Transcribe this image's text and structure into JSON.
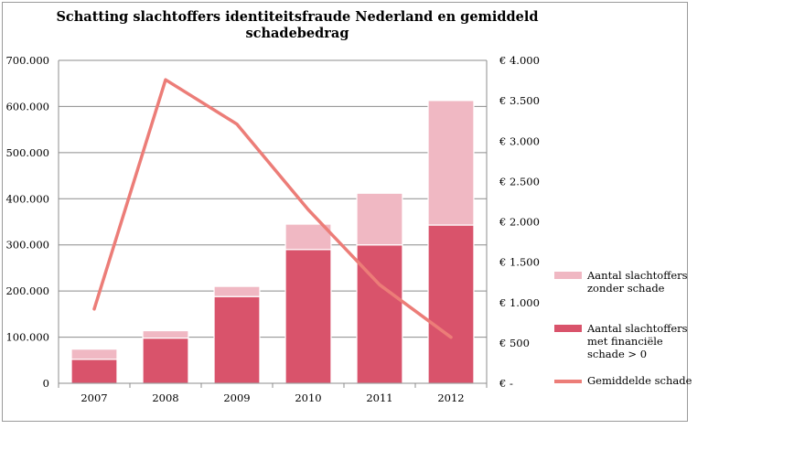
{
  "chart_data": {
    "type": "bar",
    "title": "Schatting slachtoffers identiteitsfraude Nederland en gemiddeld schadebedrag",
    "categories": [
      "2007",
      "2008",
      "2009",
      "2010",
      "2011",
      "2012"
    ],
    "series": [
      {
        "name": "Aantal slachtoffers met financiële schade > 0",
        "type": "bar",
        "axis": "left",
        "values": [
          52000,
          98000,
          188000,
          290000,
          300000,
          343000
        ],
        "color": "#d9536b"
      },
      {
        "name": "Aantal slachtoffers zonder schade",
        "type": "bar",
        "axis": "left",
        "values": [
          22000,
          16000,
          22000,
          55000,
          112000,
          270000
        ],
        "color": "#f0b8c3"
      },
      {
        "name": "Gemiddelde schade",
        "type": "line",
        "axis": "right",
        "values": [
          920,
          3760,
          3210,
          2150,
          1220,
          570
        ],
        "color": "#ec7d78"
      }
    ],
    "stacked": true,
    "ylim": [
      0,
      700000
    ],
    "y2lim": [
      0,
      4000
    ],
    "yticks": [
      "0",
      "100.000",
      "200.000",
      "300.000",
      "400.000",
      "500.000",
      "600.000",
      "700.000"
    ],
    "y2ticks": [
      "€ -",
      "€ 500",
      "€ 1.000",
      "€ 1.500",
      "€ 2.000",
      "€ 2.500",
      "€ 3.000",
      "€ 3.500",
      "€ 4.000"
    ],
    "grid": true,
    "legend_position": "right",
    "legend": [
      {
        "label": "Aantal slachtoffers zonder schade",
        "lines": [
          "Aantal slachtoffers",
          "zonder schade"
        ],
        "color": "#f0b8c3",
        "kind": "bar"
      },
      {
        "label": "Aantal slachtoffers met financiële schade > 0",
        "lines": [
          "Aantal slachtoffers",
          "met financiële",
          "schade > 0"
        ],
        "color": "#d9536b",
        "kind": "bar"
      },
      {
        "label": "Gemiddelde schade",
        "lines": [
          "Gemiddelde schade"
        ],
        "color": "#ec7d78",
        "kind": "line"
      }
    ]
  },
  "title_lines": [
    "Schatting slachtoffers identiteitsfraude Nederland en gemiddeld",
    "schadebedrag"
  ]
}
